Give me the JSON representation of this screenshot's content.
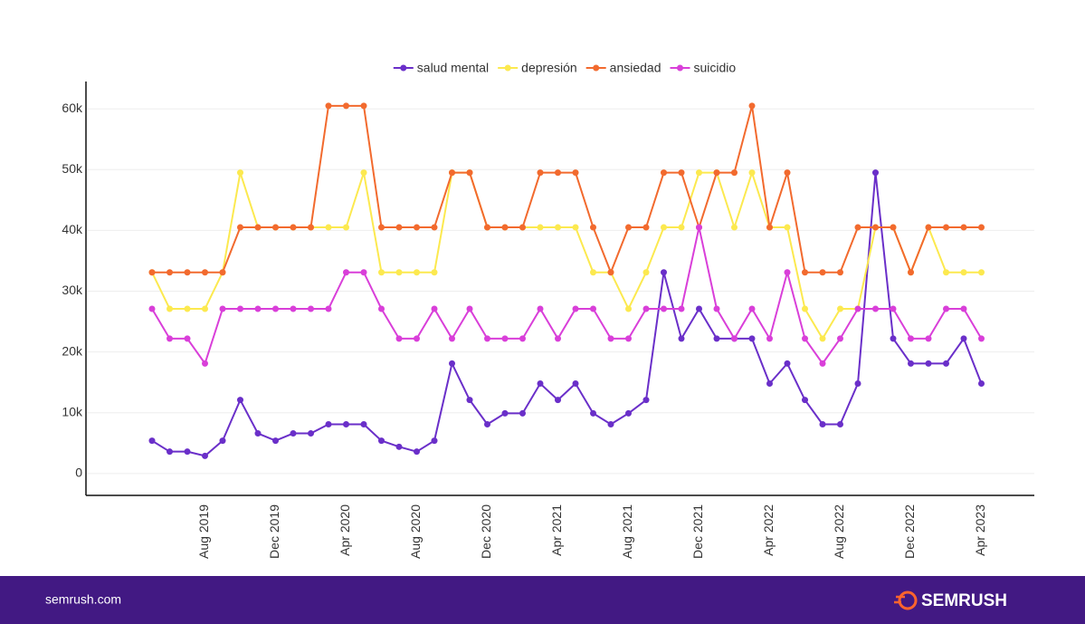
{
  "chart_data": {
    "type": "line",
    "categories": [
      null,
      null,
      null,
      "Aug 2019",
      null,
      null,
      null,
      "Dec 2019",
      null,
      null,
      null,
      "Apr 2020",
      null,
      null,
      null,
      "Aug 2020",
      null,
      null,
      null,
      "Dec 2020",
      null,
      null,
      null,
      "Apr 2021",
      null,
      null,
      null,
      "Aug 2021",
      null,
      null,
      null,
      "Dec 2021",
      null,
      null,
      null,
      "Apr 2022",
      null,
      null,
      null,
      "Aug 2022",
      null,
      null,
      null,
      "Dec 2022",
      null,
      null,
      null,
      "Apr 2023"
    ],
    "series": [
      {
        "name": "salud mental",
        "color": "#6a2fc9",
        "values": [
          5400,
          3600,
          3600,
          2900,
          5400,
          12100,
          6600,
          5400,
          6600,
          6600,
          8100,
          8100,
          8100,
          5400,
          4400,
          3600,
          5400,
          18100,
          12100,
          8100,
          9900,
          9900,
          14800,
          12100,
          14800,
          9900,
          8100,
          9900,
          12100,
          33100,
          22200,
          27100,
          22200,
          22200,
          22200,
          14800,
          18100,
          12100,
          8100,
          8100,
          14800,
          49500,
          22200,
          18100,
          18100,
          18100,
          22200,
          14800
        ]
      },
      {
        "name": "depresión",
        "color": "#fce94f",
        "values": [
          33100,
          27100,
          27100,
          27100,
          33100,
          49500,
          40500,
          40500,
          40500,
          40500,
          40500,
          40500,
          49500,
          33100,
          33100,
          33100,
          33100,
          49500,
          49500,
          40500,
          40500,
          40500,
          40500,
          40500,
          40500,
          33100,
          33100,
          27100,
          33100,
          40500,
          40500,
          49500,
          49500,
          40500,
          49500,
          40500,
          40500,
          27100,
          22200,
          27100,
          27100,
          40500,
          40500,
          33100,
          40500,
          33100,
          33100,
          33100
        ]
      },
      {
        "name": "ansiedad",
        "color": "#f26a2e",
        "values": [
          33100,
          33100,
          33100,
          33100,
          33100,
          40500,
          40500,
          40500,
          40500,
          40500,
          60500,
          60500,
          60500,
          40500,
          40500,
          40500,
          40500,
          49500,
          49500,
          40500,
          40500,
          40500,
          49500,
          49500,
          49500,
          40500,
          33100,
          40500,
          40500,
          49500,
          49500,
          40500,
          49500,
          49500,
          60500,
          40500,
          49500,
          33100,
          33100,
          33100,
          40500,
          40500,
          40500,
          33100,
          40500,
          40500,
          40500,
          40500
        ]
      },
      {
        "name": "suicidio",
        "color": "#d93fd9",
        "values": [
          27100,
          22200,
          22200,
          18100,
          27100,
          27100,
          27100,
          27100,
          27100,
          27100,
          27100,
          33100,
          33100,
          27100,
          22200,
          22200,
          27100,
          22200,
          27100,
          22200,
          22200,
          22200,
          27100,
          22200,
          27100,
          27100,
          22200,
          22200,
          27100,
          27100,
          27100,
          40500,
          27100,
          22200,
          27100,
          22200,
          33100,
          22200,
          18100,
          22200,
          27100,
          27100,
          27100,
          22200,
          22200,
          27100,
          27100,
          22200
        ]
      }
    ],
    "ylim": [
      -3600,
      64500
    ],
    "yticks": [
      0,
      {
        "value": 10000,
        "label": "10k"
      },
      {
        "value": 20000,
        "label": "20k"
      },
      {
        "value": 30000,
        "label": "30k"
      },
      {
        "value": 40000,
        "label": "40k"
      },
      {
        "value": 50000,
        "label": "50k"
      },
      {
        "value": 60000,
        "label": "60k"
      }
    ],
    "grid": true,
    "legend": "top"
  },
  "footer": {
    "site": "semrush.com",
    "brand": "SEMRUSH"
  }
}
